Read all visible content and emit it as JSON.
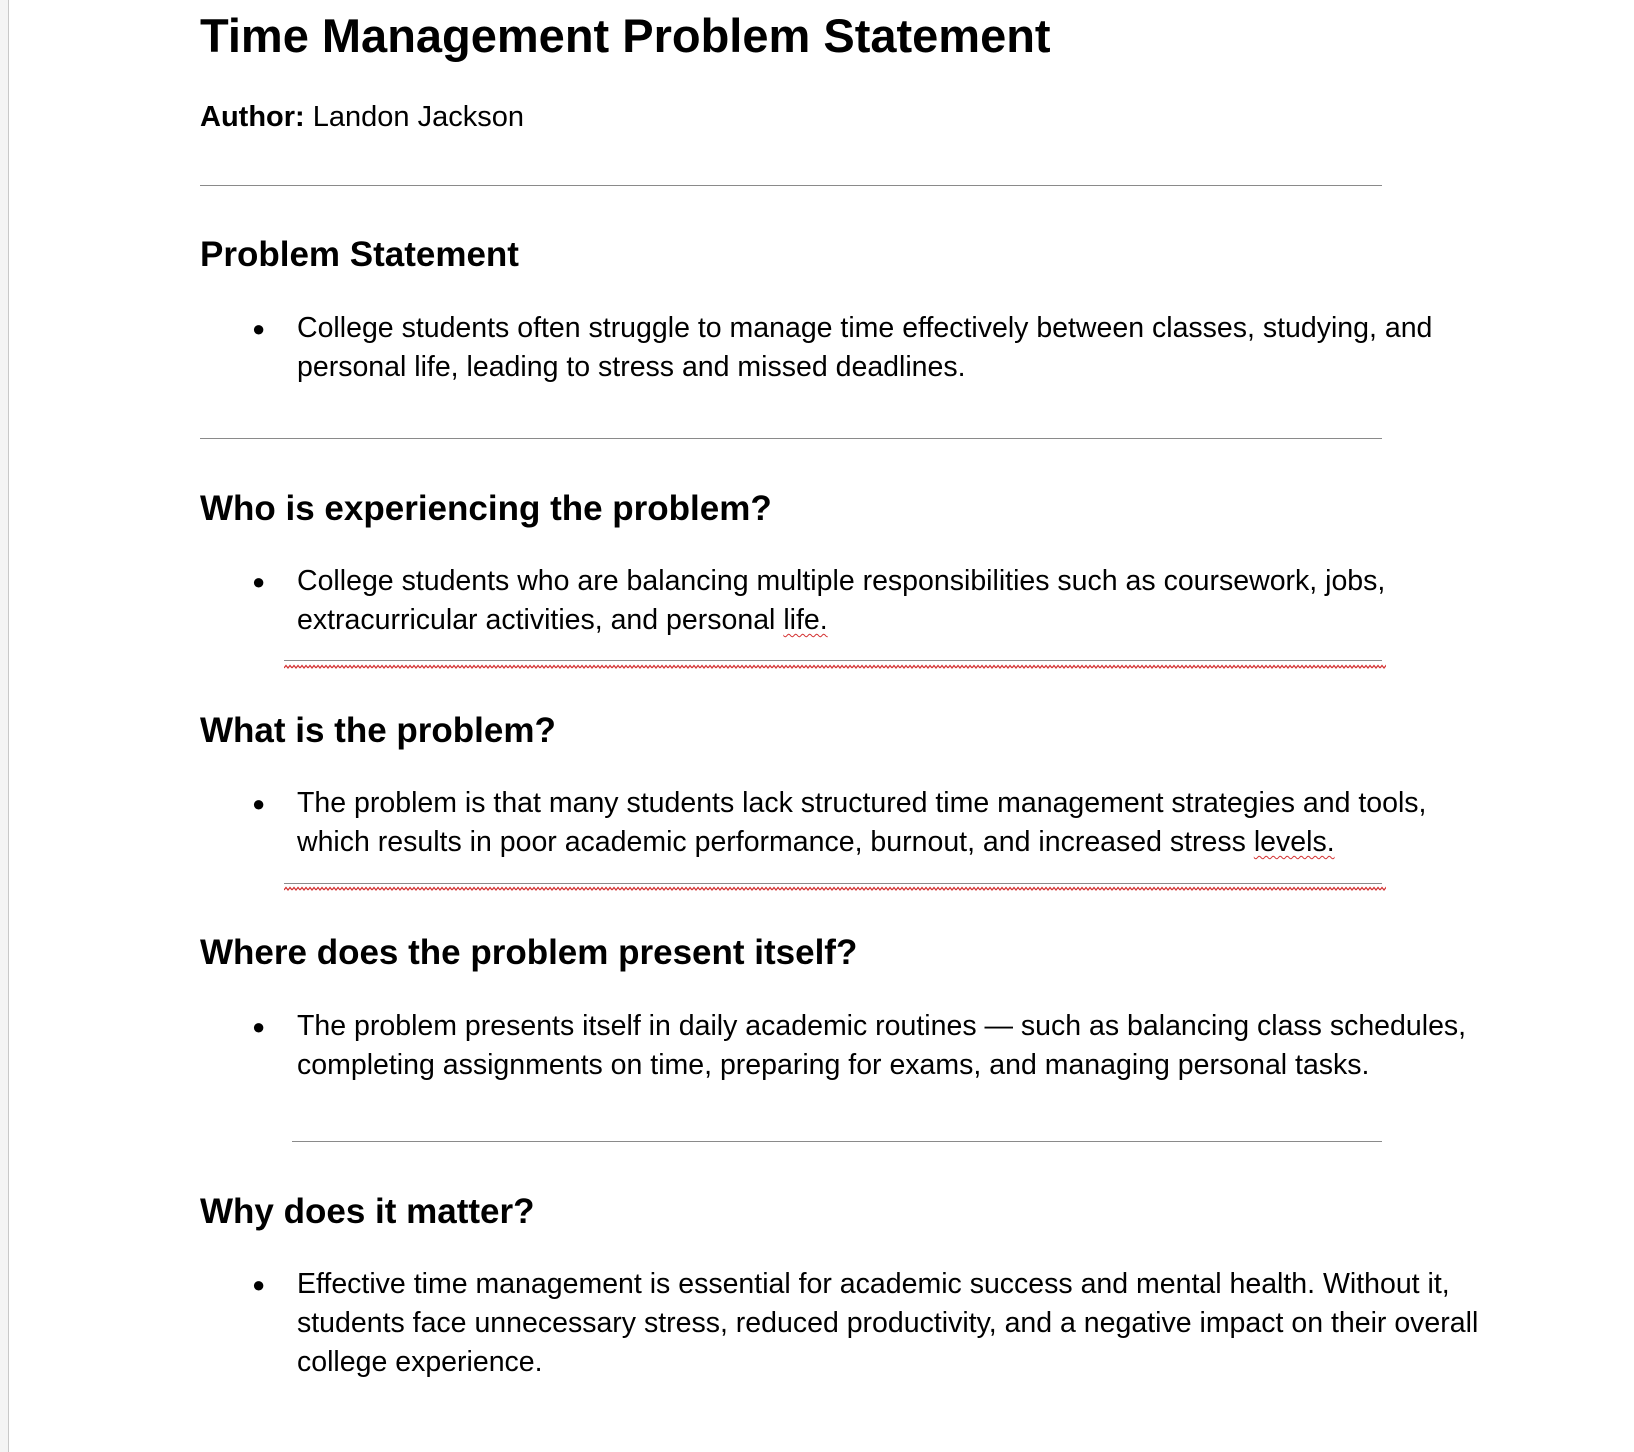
{
  "document": {
    "title": "Time Management Problem Statement",
    "author_label": "Author:",
    "author_name": "Landon Jackson"
  },
  "sections": [
    {
      "heading": "Problem Statement",
      "bullet_text": "College students often struggle to manage time effectively between classes, studying, and personal life, leading to stress and missed deadlines."
    },
    {
      "heading": "Who is experiencing the problem?",
      "bullet_text_main": "College students who are balancing multiple responsibilities such as coursework, jobs, extracurricular activities, and personal",
      "bullet_text_flagged": "life."
    },
    {
      "heading": "What is the problem?",
      "bullet_text_main": "The problem is that many students lack structured time management strategies and tools, which results in poor academic performance, burnout, and increased stress",
      "bullet_text_flagged": "levels."
    },
    {
      "heading": "Where does the problem present itself?",
      "bullet_text": "The problem presents itself in daily academic routines — such as balancing class schedules, completing assignments on time, preparing for exams, and managing personal tasks."
    },
    {
      "heading": "Why does it matter?",
      "bullet_text": "Effective time management is essential for academic success and mental health. Without it, students face unnecessary stress, reduced productivity, and a negative impact on their overall college experience."
    }
  ],
  "bullet_glyph": "●",
  "colors": {
    "text": "#000000",
    "rule": "#8a8a8a",
    "spellcheck_underline": "#d32f2f"
  }
}
